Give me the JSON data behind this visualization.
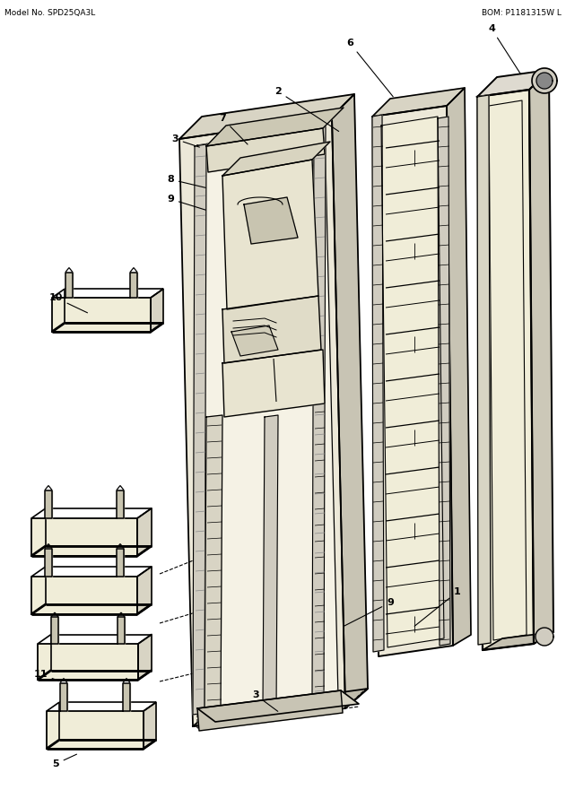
{
  "bg": "#ffffff",
  "lc": "#000000",
  "title_left": "Model No. SPD25QA3L",
  "title_right": "BOM: P1181315W L",
  "scale": [
    631,
    900
  ]
}
